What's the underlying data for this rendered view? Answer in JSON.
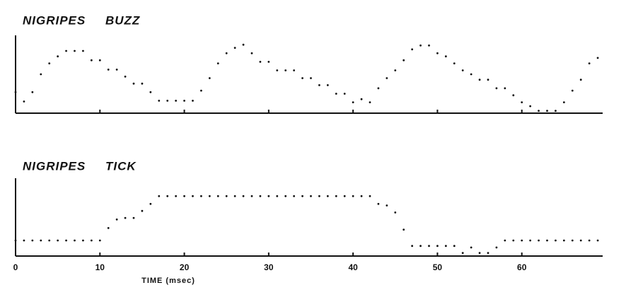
{
  "chart_data": [
    {
      "type": "scatter",
      "title": "NIGRIPES BUZZ",
      "color": "#111111",
      "x": [
        0,
        1,
        2,
        3,
        4,
        5,
        6,
        7,
        8,
        9,
        10,
        11,
        12,
        13,
        14,
        15,
        16,
        17,
        18,
        19,
        20,
        21,
        22,
        23,
        24,
        25,
        26,
        27,
        28,
        29,
        30,
        31,
        32,
        33,
        34,
        35,
        36,
        37,
        38,
        39,
        40,
        41,
        42,
        43,
        44,
        45,
        46,
        47,
        48,
        49,
        50,
        51,
        52,
        53,
        54,
        55,
        56,
        57,
        58,
        59,
        60,
        61,
        62,
        63,
        64,
        65,
        66,
        67,
        68,
        69
      ],
      "values": [
        2.7,
        1.5,
        2.7,
        5.0,
        6.4,
        7.3,
        8.0,
        8.0,
        8.0,
        6.8,
        6.8,
        5.6,
        5.6,
        4.7,
        3.8,
        3.8,
        2.7,
        1.6,
        1.6,
        1.6,
        1.6,
        1.6,
        2.9,
        4.5,
        6.4,
        7.7,
        8.4,
        8.8,
        7.7,
        6.6,
        6.6,
        5.5,
        5.5,
        5.5,
        4.5,
        4.5,
        3.6,
        3.6,
        2.5,
        2.5,
        1.4,
        1.8,
        1.4,
        3.2,
        4.5,
        5.5,
        6.8,
        8.2,
        8.7,
        8.7,
        7.7,
        7.3,
        6.4,
        5.5,
        5.0,
        4.3,
        4.3,
        3.2,
        3.2,
        2.3,
        1.4,
        0.9,
        0.3,
        0.3,
        0.3,
        1.4,
        2.9,
        4.3,
        6.4,
        7.1
      ],
      "xlim": [
        0,
        70
      ],
      "ylim": [
        0,
        10
      ],
      "xticks": [
        0,
        10,
        20,
        30,
        40,
        50,
        60
      ],
      "tick_labels": false
    },
    {
      "type": "scatter",
      "title": "NIGRIPES TICK",
      "color": "#111111",
      "xlabel": "TIME (msec)",
      "x": [
        0,
        1,
        2,
        3,
        4,
        5,
        6,
        7,
        8,
        9,
        10,
        11,
        12,
        13,
        14,
        15,
        16,
        17,
        18,
        19,
        20,
        21,
        22,
        23,
        24,
        25,
        26,
        27,
        28,
        29,
        30,
        31,
        32,
        33,
        34,
        35,
        36,
        37,
        38,
        39,
        40,
        41,
        42,
        43,
        44,
        45,
        46,
        47,
        48,
        49,
        50,
        51,
        52,
        53,
        54,
        55,
        56,
        57,
        58,
        59,
        60,
        61,
        62,
        63,
        64,
        65,
        66,
        67,
        68,
        69
      ],
      "values": [
        2.0,
        2.0,
        2.0,
        2.0,
        2.0,
        2.0,
        2.0,
        2.0,
        2.0,
        2.0,
        2.0,
        3.6,
        4.7,
        4.9,
        4.9,
        5.8,
        6.7,
        7.7,
        7.7,
        7.7,
        7.7,
        7.7,
        7.7,
        7.7,
        7.7,
        7.7,
        7.7,
        7.7,
        7.7,
        7.7,
        7.7,
        7.7,
        7.7,
        7.7,
        7.7,
        7.7,
        7.7,
        7.7,
        7.7,
        7.7,
        7.7,
        7.7,
        7.7,
        6.7,
        6.5,
        5.6,
        3.4,
        1.3,
        1.3,
        1.3,
        1.3,
        1.3,
        1.3,
        0.4,
        1.1,
        0.4,
        0.4,
        1.1,
        2.0,
        2.0,
        2.0,
        2.0,
        2.0,
        2.0,
        2.0,
        2.0,
        2.0,
        2.0,
        2.0,
        2.0
      ],
      "xlim": [
        0,
        70
      ],
      "ylim": [
        0,
        10
      ],
      "xticks": [
        0,
        10,
        20,
        30,
        40,
        50,
        60
      ],
      "tick_labels": true
    }
  ]
}
